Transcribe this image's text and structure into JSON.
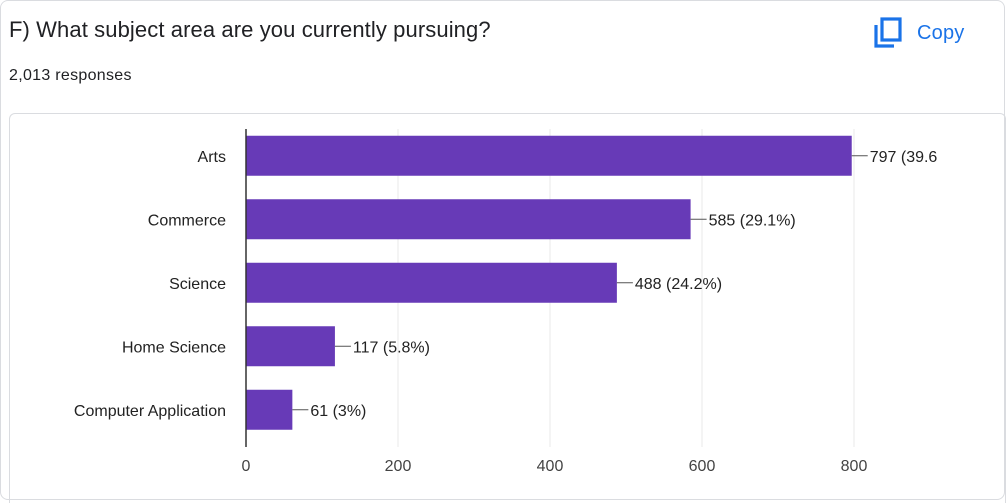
{
  "question": "F) What subject area are you currently pursuing?",
  "responses_text": "2,013 responses",
  "copy_label": "Copy",
  "colors": {
    "bar": "#673ab7",
    "accent": "#1a73e8",
    "grid": "#e8e8e8",
    "axis": "#333333"
  },
  "chart_data": {
    "type": "bar",
    "orientation": "horizontal",
    "title": "",
    "xlabel": "",
    "ylabel": "",
    "categories": [
      "Arts",
      "Commerce",
      "Science",
      "Home Science",
      "Computer Application"
    ],
    "values": [
      797,
      585,
      488,
      117,
      61
    ],
    "data_labels": [
      "797 (39.6",
      "585 (29.1%)",
      "488 (24.2%)",
      "117 (5.8%)",
      "61 (3%)"
    ],
    "xlim": [
      0,
      800
    ],
    "xticks": [
      0,
      200,
      400,
      600,
      800
    ],
    "grid": true,
    "legend": "none"
  }
}
